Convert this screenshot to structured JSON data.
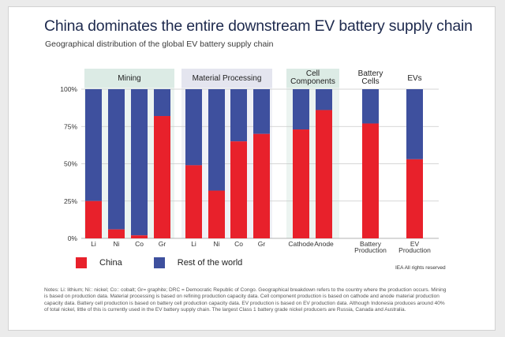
{
  "title": "China dominates the entire downstream EV battery supply chain",
  "subtitle": "Geographical distribution of the global EV battery supply chain",
  "colors": {
    "china": "#e8212b",
    "rest": "#3e509e",
    "group_green": "#dcebe5",
    "group_lavender": "#e4e5ef"
  },
  "chart_data": {
    "type": "bar",
    "stacked": true,
    "ylim": [
      0,
      100
    ],
    "yticks": [
      "0%",
      "25%",
      "50%",
      "75%",
      "100%"
    ],
    "groups": [
      {
        "name": "Mining",
        "label_lines": [
          "Mining"
        ],
        "shade": "green",
        "categories": [
          "Li",
          "Ni",
          "Co",
          "Gr"
        ],
        "china": [
          25,
          6,
          2,
          82
        ]
      },
      {
        "name": "Material Processing",
        "label_lines": [
          "Material Processing"
        ],
        "shade": "lavender",
        "categories": [
          "Li",
          "Ni",
          "Co",
          "Gr"
        ],
        "china": [
          49,
          32,
          65,
          70
        ]
      },
      {
        "name": "Cell Components",
        "label_lines": [
          "Cell",
          "Components"
        ],
        "shade": "green",
        "categories": [
          "Cathode",
          "Anode"
        ],
        "china": [
          73,
          86
        ]
      },
      {
        "name": "Battery Cells",
        "label_lines": [
          "Battery",
          "Cells"
        ],
        "shade": "none",
        "categories": [
          "Battery Production"
        ],
        "category_lines": [
          [
            "Battery",
            "Production"
          ]
        ],
        "china": [
          77
        ]
      },
      {
        "name": "EVs",
        "label_lines": [
          "EVs"
        ],
        "shade": "none",
        "categories": [
          "EV Production"
        ],
        "category_lines": [
          [
            "EV",
            "Production"
          ]
        ],
        "china": [
          53
        ]
      }
    ],
    "series": [
      {
        "name": "China",
        "key": "china"
      },
      {
        "name": "Rest of the world",
        "key": "rest"
      }
    ]
  },
  "legend": {
    "china": "China",
    "rest": "Rest of the world"
  },
  "credit": "IEA All rights reserved",
  "notes": "Notes: Li: lithium; Ni:: nickel; Co:: cobalt; Gr= graphite; DRC = Democratic Republic of Congo. Geographical breakdown refers to the country where the production occurs. Mining is based on production data. Material processing is based on refining production capacity data. Cell component production is based on cathode and anode material production capacity data. Battery cell production is based on battery cell production capacity data. EV production is based on EV production data. Although Indonesia produces around 40% of total nickel, little of this is currently used in the EV battery supply chain. The largest Class 1 battery grade nickel producers are Russia, Canada and Australia."
}
